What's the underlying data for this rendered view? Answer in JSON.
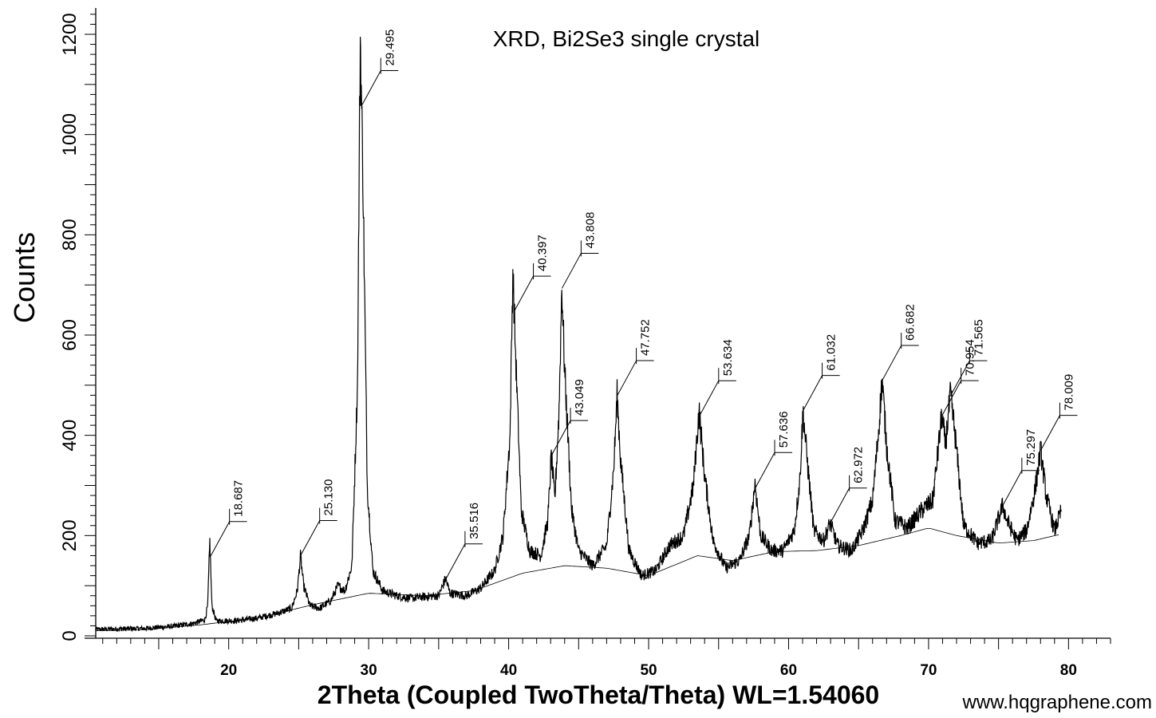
{
  "chart_data": {
    "type": "line",
    "title": "XRD, Bi2Se3 single crystal",
    "xlabel": "2Theta (Coupled TwoTheta/Theta) WL=1.54060",
    "ylabel": "Counts",
    "xlim": [
      10.5,
      83
    ],
    "ylim": [
      -5,
      1250
    ],
    "x_ticks": [
      20,
      30,
      40,
      50,
      60,
      70,
      80
    ],
    "y_ticks": [
      0,
      200,
      400,
      600,
      800,
      1000,
      1200
    ],
    "grid": false,
    "series": [
      {
        "role": "measured",
        "points": [
          [
            10.5,
            13
          ],
          [
            14,
            15
          ],
          [
            16,
            19
          ],
          [
            17.5,
            25
          ],
          [
            18.3,
            32
          ],
          [
            18.5,
            60
          ],
          [
            18.65,
            190
          ],
          [
            18.8,
            60
          ],
          [
            19.1,
            30
          ],
          [
            20.5,
            30
          ],
          [
            22,
            35
          ],
          [
            23.5,
            45
          ],
          [
            24.5,
            55
          ],
          [
            24.9,
            90
          ],
          [
            25.13,
            160
          ],
          [
            25.35,
            100
          ],
          [
            25.8,
            60
          ],
          [
            26.5,
            55
          ],
          [
            27.3,
            70
          ],
          [
            27.8,
            100
          ],
          [
            28.3,
            90
          ],
          [
            28.8,
            140
          ],
          [
            29.2,
            500
          ],
          [
            29.4,
            1200
          ],
          [
            29.6,
            900
          ],
          [
            29.9,
            300
          ],
          [
            30.3,
            130
          ],
          [
            31,
            90
          ],
          [
            32,
            80
          ],
          [
            33,
            75
          ],
          [
            34,
            78
          ],
          [
            35,
            80
          ],
          [
            35.5,
            115
          ],
          [
            35.8,
            85
          ],
          [
            37,
            80
          ],
          [
            38,
            95
          ],
          [
            39,
            130
          ],
          [
            39.6,
            200
          ],
          [
            40.1,
            400
          ],
          [
            40.3,
            730
          ],
          [
            40.5,
            560
          ],
          [
            40.9,
            250
          ],
          [
            41.5,
            170
          ],
          [
            42.3,
            160
          ],
          [
            42.8,
            230
          ],
          [
            43.05,
            360
          ],
          [
            43.3,
            270
          ],
          [
            43.6,
            450
          ],
          [
            43.8,
            700
          ],
          [
            44,
            530
          ],
          [
            44.5,
            250
          ],
          [
            45,
            170
          ],
          [
            46,
            140
          ],
          [
            47,
            180
          ],
          [
            47.5,
            330
          ],
          [
            47.75,
            480
          ],
          [
            48,
            350
          ],
          [
            48.6,
            170
          ],
          [
            49.5,
            120
          ],
          [
            50.5,
            130
          ],
          [
            51.5,
            180
          ],
          [
            52.5,
            200
          ],
          [
            53.2,
            300
          ],
          [
            53.6,
            450
          ],
          [
            54,
            320
          ],
          [
            54.6,
            190
          ],
          [
            55.5,
            135
          ],
          [
            56.5,
            150
          ],
          [
            57.2,
            200
          ],
          [
            57.6,
            305
          ],
          [
            58,
            200
          ],
          [
            58.8,
            170
          ],
          [
            59.6,
            170
          ],
          [
            60.4,
            210
          ],
          [
            60.8,
            310
          ],
          [
            61.03,
            450
          ],
          [
            61.3,
            360
          ],
          [
            61.8,
            210
          ],
          [
            62.5,
            190
          ],
          [
            62.97,
            225
          ],
          [
            63.5,
            180
          ],
          [
            64.5,
            170
          ],
          [
            65.3,
            210
          ],
          [
            66,
            270
          ],
          [
            66.4,
            400
          ],
          [
            66.68,
            510
          ],
          [
            67,
            380
          ],
          [
            67.6,
            230
          ],
          [
            68.5,
            215
          ],
          [
            69.5,
            250
          ],
          [
            70.3,
            270
          ],
          [
            70.95,
            440
          ],
          [
            71.2,
            380
          ],
          [
            71.56,
            480
          ],
          [
            71.9,
            400
          ],
          [
            72.5,
            220
          ],
          [
            73.5,
            185
          ],
          [
            74.5,
            190
          ],
          [
            75.3,
            260
          ],
          [
            75.6,
            230
          ],
          [
            76.3,
            190
          ],
          [
            77,
            210
          ],
          [
            77.6,
            290
          ],
          [
            78.01,
            370
          ],
          [
            78.4,
            280
          ],
          [
            79,
            210
          ],
          [
            79.5,
            250
          ]
        ]
      },
      {
        "role": "background",
        "points": [
          [
            10.5,
            10
          ],
          [
            14,
            12
          ],
          [
            18,
            22
          ],
          [
            22,
            35
          ],
          [
            26,
            62
          ],
          [
            30,
            85
          ],
          [
            34,
            80
          ],
          [
            37.5,
            90
          ],
          [
            41,
            125
          ],
          [
            44,
            140
          ],
          [
            47,
            135
          ],
          [
            50,
            120
          ],
          [
            53.5,
            160
          ],
          [
            56,
            150
          ],
          [
            59,
            168
          ],
          [
            62,
            170
          ],
          [
            65,
            180
          ],
          [
            68,
            200
          ],
          [
            70,
            215
          ],
          [
            72,
            200
          ],
          [
            75,
            185
          ],
          [
            77.5,
            190
          ],
          [
            79.5,
            203
          ]
        ]
      }
    ],
    "peaks": [
      {
        "x": 18.687,
        "label": "18.687"
      },
      {
        "x": 25.13,
        "label": "25.130"
      },
      {
        "x": 29.495,
        "label": "29.495"
      },
      {
        "x": 35.516,
        "label": "35.516"
      },
      {
        "x": 40.397,
        "label": "40.397"
      },
      {
        "x": 43.049,
        "label": "43.049"
      },
      {
        "x": 43.808,
        "label": "43.808"
      },
      {
        "x": 47.752,
        "label": "47.752"
      },
      {
        "x": 53.634,
        "label": "53.634"
      },
      {
        "x": 57.636,
        "label": "57.636"
      },
      {
        "x": 61.032,
        "label": "61.032"
      },
      {
        "x": 62.972,
        "label": "62.972"
      },
      {
        "x": 66.682,
        "label": "66.682"
      },
      {
        "x": 70.954,
        "label": "70.954"
      },
      {
        "x": 71.565,
        "label": "71.565"
      },
      {
        "x": 75.297,
        "label": "75.297"
      },
      {
        "x": 78.009,
        "label": "78.009"
      }
    ]
  },
  "watermark": "www.hqgraphene.com"
}
